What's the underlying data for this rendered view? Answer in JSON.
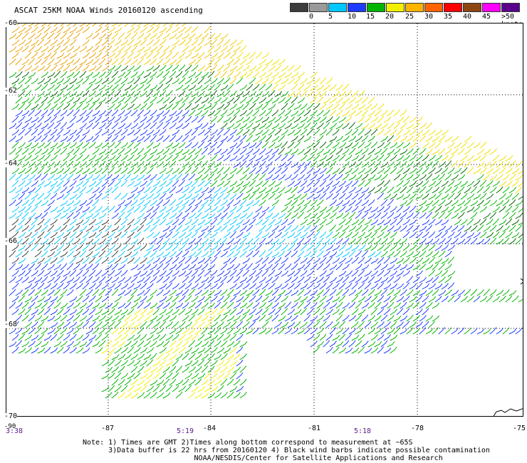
{
  "title": "ASCAT 25KM NOAA Winds 20160120 ascending",
  "legend": {
    "colors": [
      "#3c3c3c",
      "#9a9a9a",
      "#00c8ff",
      "#1e3cff",
      "#00b400",
      "#f0f000",
      "#ffb400",
      "#ff6400",
      "#ff0000",
      "#8c4614",
      "#ff00ff",
      "#5a008c"
    ],
    "labels": [
      "0",
      "5",
      "10",
      "15",
      "20",
      "25",
      "30",
      "35",
      "40",
      "45",
      ">50 knots"
    ]
  },
  "axes": {
    "lat_labels": [
      "-60",
      "-62",
      "-64",
      "-66",
      "-68",
      "-70"
    ],
    "lon_labels": [
      "-87",
      "-84",
      "-81",
      "-78",
      "-75"
    ],
    "corner_label": "-90"
  },
  "times": [
    "3:38",
    "5:19",
    "5:18"
  ],
  "notes": [
    "Note: 1) Times are GMT 2)Times along bottom correspond to measurement at ~65S",
    "      3)Data buffer is 22 hrs from 20160120 4) Black wind barbs indicate possible contamination",
    "                          NOAA/NESDIS/Center for Satellite Applications and Research"
  ]
}
